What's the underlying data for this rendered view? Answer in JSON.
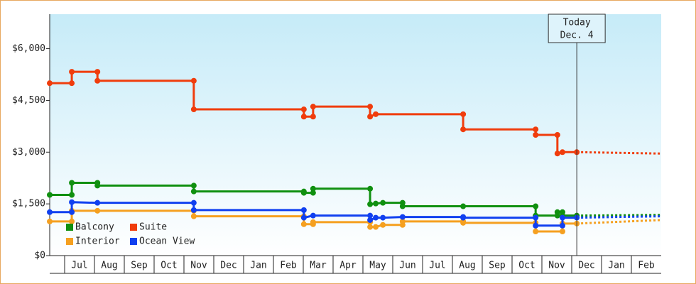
{
  "chart_data": {
    "type": "line",
    "xlim": [
      -0.5,
      20
    ],
    "xticks": [
      {
        "value": 0.5,
        "label": "Jul"
      },
      {
        "value": 1.5,
        "label": "Aug"
      },
      {
        "value": 2.5,
        "label": "Sep"
      },
      {
        "value": 3.5,
        "label": "Oct"
      },
      {
        "value": 4.5,
        "label": "Nov"
      },
      {
        "value": 5.5,
        "label": "Dec"
      },
      {
        "value": 6.5,
        "label": "Jan"
      },
      {
        "value": 7.5,
        "label": "Feb"
      },
      {
        "value": 8.5,
        "label": "Mar"
      },
      {
        "value": 9.5,
        "label": "Apr"
      },
      {
        "value": 10.5,
        "label": "May"
      },
      {
        "value": 11.5,
        "label": "Jun"
      },
      {
        "value": 12.5,
        "label": "Jul"
      },
      {
        "value": 13.5,
        "label": "Aug"
      },
      {
        "value": 14.5,
        "label": "Sep"
      },
      {
        "value": 15.5,
        "label": "Oct"
      },
      {
        "value": 16.5,
        "label": "Nov"
      },
      {
        "value": 17.5,
        "label": "Dec"
      },
      {
        "value": 18.5,
        "label": "Jan"
      },
      {
        "value": 19.5,
        "label": "Feb"
      }
    ],
    "ylim": [
      0,
      7000
    ],
    "yticks": [
      {
        "value": 0,
        "label": "$0"
      },
      {
        "value": 1500,
        "label": "$1,500"
      },
      {
        "value": 3000,
        "label": "$3,000"
      },
      {
        "value": 4500,
        "label": "$4,500"
      },
      {
        "value": 6000,
        "label": "$6,000"
      }
    ],
    "today": {
      "x": 17.17,
      "label": [
        "Today",
        "Dec. 4"
      ]
    },
    "legend": "lower left",
    "series": [
      {
        "name": "Balcony",
        "color": "#109010",
        "x": [
          -0.5,
          0.24,
          0.24,
          1.1,
          1.1,
          4.33,
          4.33,
          8.02,
          8.02,
          8.33,
          8.33,
          10.24,
          10.24,
          10.43,
          10.67,
          11.33,
          11.33,
          13.36,
          15.79,
          15.79,
          16.52,
          16.52,
          16.69,
          16.69,
          17.17
        ],
        "values": [
          1760,
          1760,
          2110,
          2110,
          2030,
          2030,
          1860,
          1860,
          1820,
          1820,
          1940,
          1940,
          1490,
          1510,
          1530,
          1530,
          1430,
          1430,
          1430,
          1160,
          1160,
          1260,
          1260,
          1160,
          1160
        ],
        "projection": {
          "x": [
            17.17,
            19.98
          ],
          "values": [
            1160,
            1180
          ]
        }
      },
      {
        "name": "Suite",
        "color": "#f03c0c",
        "x": [
          -0.5,
          0.24,
          0.24,
          1.1,
          1.1,
          4.33,
          4.33,
          8.02,
          8.02,
          8.33,
          8.33,
          10.24,
          10.24,
          10.43,
          13.36,
          13.36,
          15.79,
          15.79,
          16.52,
          16.52,
          16.69,
          17.17
        ],
        "values": [
          5000,
          5000,
          5330,
          5330,
          5070,
          5070,
          4240,
          4240,
          4030,
          4030,
          4320,
          4320,
          4030,
          4100,
          4100,
          3660,
          3660,
          3500,
          3500,
          2960,
          3000,
          3000
        ],
        "projection": {
          "x": [
            17.17,
            19.98
          ],
          "values": [
            3000,
            2960
          ]
        }
      },
      {
        "name": "Interior",
        "color": "#f5a020",
        "x": [
          -0.5,
          0.24,
          0.24,
          1.1,
          4.33,
          4.33,
          8.02,
          8.02,
          8.33,
          8.33,
          10.24,
          10.24,
          10.43,
          10.67,
          11.33,
          11.33,
          13.36,
          13.36,
          15.79,
          15.79,
          16.69,
          16.69,
          17.17
        ],
        "values": [
          990,
          990,
          1300,
          1300,
          1300,
          1140,
          1140,
          910,
          910,
          970,
          970,
          830,
          830,
          890,
          890,
          990,
          990,
          950,
          950,
          700,
          700,
          930,
          930
        ],
        "projection": {
          "x": [
            17.17,
            19.98
          ],
          "values": [
            930,
            1030
          ]
        }
      },
      {
        "name": "Ocean View",
        "color": "#1040f0",
        "x": [
          -0.5,
          0.24,
          0.24,
          1.1,
          4.33,
          4.33,
          8.02,
          8.02,
          8.33,
          10.24,
          10.24,
          10.43,
          10.67,
          11.33,
          13.36,
          13.36,
          15.79,
          15.79,
          16.69,
          16.69,
          17.17
        ],
        "values": [
          1260,
          1260,
          1550,
          1530,
          1530,
          1320,
          1320,
          1100,
          1160,
          1160,
          1030,
          1100,
          1100,
          1120,
          1120,
          1100,
          1100,
          870,
          870,
          1100,
          1100
        ],
        "projection": {
          "x": [
            17.17,
            19.98
          ],
          "values": [
            1100,
            1140
          ]
        }
      }
    ]
  }
}
